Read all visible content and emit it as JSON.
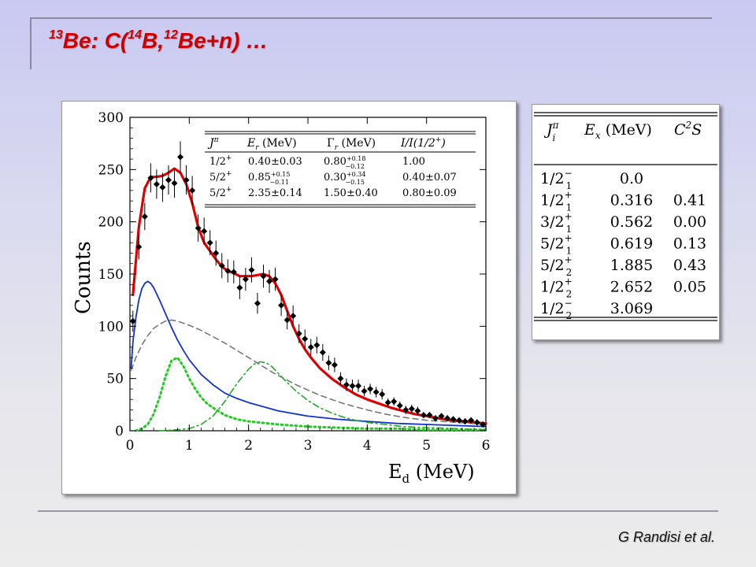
{
  "slide": {
    "title": {
      "mass_13": "13",
      "be": "Be: C(",
      "mass_14": "14",
      "b": "B,",
      "mass_12": "12",
      "rest": "Be+n) …"
    },
    "credit": "G Randisi et al."
  },
  "chart_data": {
    "type": "scatter",
    "xlabel": "E",
    "xlabel_sub": "d",
    "xlabel_unit": " (MeV)",
    "ylabel": "Counts",
    "xlim": [
      0,
      6
    ],
    "ylim": [
      0,
      300
    ],
    "xticks": [
      0,
      1,
      2,
      3,
      4,
      5,
      6
    ],
    "yticks": [
      0,
      50,
      100,
      150,
      200,
      250,
      300
    ],
    "data_points": {
      "x": [
        0.05,
        0.15,
        0.25,
        0.35,
        0.45,
        0.55,
        0.65,
        0.75,
        0.85,
        0.95,
        1.05,
        1.15,
        1.25,
        1.35,
        1.45,
        1.55,
        1.65,
        1.75,
        1.85,
        1.95,
        2.05,
        2.15,
        2.25,
        2.35,
        2.45,
        2.55,
        2.65,
        2.75,
        2.85,
        2.95,
        3.05,
        3.15,
        3.25,
        3.35,
        3.45,
        3.55,
        3.65,
        3.75,
        3.85,
        3.95,
        4.05,
        4.15,
        4.25,
        4.35,
        4.45,
        4.55,
        4.65,
        4.75,
        4.85,
        4.95,
        5.05,
        5.15,
        5.25,
        5.35,
        5.45,
        5.55,
        5.65,
        5.75,
        5.85,
        5.95
      ],
      "y": [
        105,
        176,
        205,
        242,
        236,
        233,
        240,
        237,
        262,
        240,
        230,
        194,
        191,
        180,
        170,
        158,
        153,
        152,
        137,
        145,
        154,
        122,
        148,
        143,
        145,
        120,
        106,
        110,
        93,
        88,
        80,
        82,
        75,
        65,
        63,
        50,
        44,
        43,
        43,
        38,
        40,
        37,
        35,
        27,
        28,
        24,
        20,
        21,
        19,
        15,
        15,
        12,
        14,
        12,
        11,
        10,
        9,
        10,
        8,
        6
      ],
      "err": [
        10,
        12,
        13,
        14,
        14,
        14,
        14,
        14,
        15,
        14,
        14,
        13,
        13,
        12,
        12,
        12,
        11,
        11,
        11,
        11,
        12,
        10,
        11,
        11,
        11,
        10,
        9,
        10,
        9,
        9,
        8,
        8,
        8,
        7,
        7,
        6,
        6,
        6,
        6,
        5,
        5,
        5,
        5,
        4,
        4,
        4,
        4,
        4,
        4,
        3,
        3,
        3,
        3,
        3,
        3,
        3,
        3,
        3,
        3,
        2
      ]
    },
    "series": [
      {
        "name": "",
        "style": "solid",
        "color": "#dd0000",
        "x": [
          0.05,
          0.15,
          0.25,
          0.35,
          0.45,
          0.55,
          0.65,
          0.75,
          0.85,
          0.95,
          1.05,
          1.15,
          1.25,
          1.35,
          1.45,
          1.55,
          1.65,
          1.75,
          1.85,
          1.95,
          2.05,
          2.15,
          2.25,
          2.35,
          2.45,
          2.55,
          2.65,
          2.75,
          2.85,
          2.95,
          3.05,
          3.2,
          3.4,
          3.6,
          3.8,
          4.0,
          4.2,
          4.4,
          4.6,
          4.8,
          5.0,
          5.2,
          5.4,
          5.6,
          5.8,
          6.0
        ],
        "y": [
          130,
          195,
          232,
          243,
          243,
          244,
          247,
          251,
          247,
          236,
          218,
          195,
          180,
          172,
          164,
          157,
          153,
          151,
          148,
          148,
          148,
          149,
          150,
          148,
          141,
          130,
          115,
          100,
          88,
          78,
          70,
          60,
          50,
          42,
          35,
          30,
          26,
          22,
          19,
          16,
          14,
          12,
          10,
          9,
          8,
          7
        ]
      },
      {
        "name": "",
        "style": "solid",
        "color": "#1133cc",
        "x": [
          0.02,
          0.05,
          0.1,
          0.15,
          0.2,
          0.25,
          0.3,
          0.35,
          0.4,
          0.45,
          0.5,
          0.6,
          0.7,
          0.8,
          0.9,
          1.0,
          1.2,
          1.4,
          1.6,
          1.8,
          2.0,
          2.5,
          3.0,
          3.5,
          4.0,
          4.5,
          5.0,
          5.5,
          6.0
        ],
        "y": [
          60,
          85,
          108,
          125,
          136,
          141,
          143,
          141,
          137,
          131,
          125,
          112,
          99,
          87,
          77,
          68,
          54,
          44,
          36,
          31,
          27,
          19,
          14,
          11,
          9,
          7,
          6,
          5,
          4
        ]
      },
      {
        "name": "",
        "style": "dashed",
        "color": "#777777",
        "x": [
          0.02,
          0.1,
          0.2,
          0.3,
          0.4,
          0.5,
          0.6,
          0.7,
          0.8,
          0.9,
          1.0,
          1.2,
          1.4,
          1.6,
          1.8,
          2.0,
          2.2,
          2.4,
          2.6,
          2.8,
          3.0,
          3.2,
          3.4,
          3.6,
          3.8,
          4.0,
          4.3,
          4.6,
          5.0,
          5.5,
          6.0
        ],
        "y": [
          58,
          70,
          82,
          91,
          98,
          102,
          105,
          106,
          105,
          103,
          101,
          96,
          90,
          84,
          77,
          70,
          63,
          56,
          50,
          44,
          39,
          34,
          30,
          26,
          23,
          20,
          16,
          13,
          10,
          8,
          6
        ]
      },
      {
        "name": "",
        "style": "dotted",
        "color": "#22cc22",
        "x": [
          0.1,
          0.2,
          0.3,
          0.4,
          0.5,
          0.6,
          0.7,
          0.8,
          0.9,
          1.0,
          1.1,
          1.2,
          1.3,
          1.4,
          1.6,
          1.8,
          2.0,
          2.5,
          3.0,
          3.5,
          4.0,
          4.5,
          5.0,
          5.5,
          6.0
        ],
        "y": [
          0,
          2,
          6,
          16,
          32,
          52,
          67,
          70,
          62,
          50,
          40,
          32,
          26,
          22,
          15,
          11,
          9,
          6,
          4,
          3,
          2,
          2,
          1,
          1,
          1
        ]
      },
      {
        "name": "",
        "style": "dashdot",
        "color": "#22aa22",
        "x": [
          0.5,
          0.8,
          1.0,
          1.2,
          1.4,
          1.6,
          1.8,
          2.0,
          2.1,
          2.2,
          2.3,
          2.4,
          2.5,
          2.6,
          2.8,
          3.0,
          3.2,
          3.4,
          3.6,
          3.8,
          4.0,
          4.3,
          4.6,
          5.0,
          5.5,
          6.0
        ],
        "y": [
          0,
          1,
          2,
          6,
          14,
          28,
          45,
          59,
          64,
          66,
          65,
          61,
          55,
          49,
          38,
          29,
          22,
          17,
          13,
          10,
          8,
          6,
          4,
          3,
          2,
          1
        ]
      }
    ],
    "inset_table": {
      "headers": [
        "J",
        "E",
        " (MeV)",
        "Γ",
        " (MeV)",
        "I/I(1/2",
        ")"
      ],
      "header_sup": [
        "π",
        "",
        "",
        "",
        "",
        "+",
        ""
      ],
      "header_sub": [
        "",
        "r",
        "",
        "r",
        "",
        "",
        ""
      ],
      "rows": [
        {
          "jpi": "1/2",
          "jpi_sup": "+",
          "er": "0.40±0.03",
          "er_sup": "",
          "er_sub": "",
          "gamma": "0.80",
          "gamma_sup": "+0.18",
          "gamma_sub": "−0.12",
          "ratio": "1.00"
        },
        {
          "jpi": "5/2",
          "jpi_sup": "+",
          "er": "0.85",
          "er_sup": "+0.15",
          "er_sub": "−0.11",
          "gamma": "0.30",
          "gamma_sup": "+0.34",
          "gamma_sub": "−0.15",
          "ratio": "0.40±0.07"
        },
        {
          "jpi": "5/2",
          "jpi_sup": "+",
          "er": "2.35±0.14",
          "er_sup": "",
          "er_sub": "",
          "gamma": "1.50±0.40",
          "gamma_sup": "",
          "gamma_sub": "",
          "ratio": "0.80±0.09"
        }
      ]
    }
  },
  "levels_table": {
    "headers": {
      "j": "J",
      "j_sup": "π",
      "j_sub": "i",
      "ex": "E",
      "ex_sub": "x",
      "ex_unit": " (MeV)",
      "c": "C",
      "c_sup": "2",
      "s": "S"
    },
    "rows": [
      {
        "j": "1/2",
        "sup": "−",
        "sub": "1",
        "ex": "0.0",
        "c2s": ""
      },
      {
        "j": "1/2",
        "sup": "+",
        "sub": "1",
        "ex": "0.316",
        "c2s": "0.41"
      },
      {
        "j": "3/2",
        "sup": "+",
        "sub": "1",
        "ex": "0.562",
        "c2s": "0.00"
      },
      {
        "j": "5/2",
        "sup": "+",
        "sub": "1",
        "ex": "0.619",
        "c2s": "0.13"
      },
      {
        "j": "5/2",
        "sup": "+",
        "sub": "2",
        "ex": "1.885",
        "c2s": "0.43"
      },
      {
        "j": "1/2",
        "sup": "+",
        "sub": "2",
        "ex": "2.652",
        "c2s": "0.05"
      },
      {
        "j": "1/2",
        "sup": "−",
        "sub": "2",
        "ex": "3.069",
        "c2s": ""
      }
    ]
  }
}
